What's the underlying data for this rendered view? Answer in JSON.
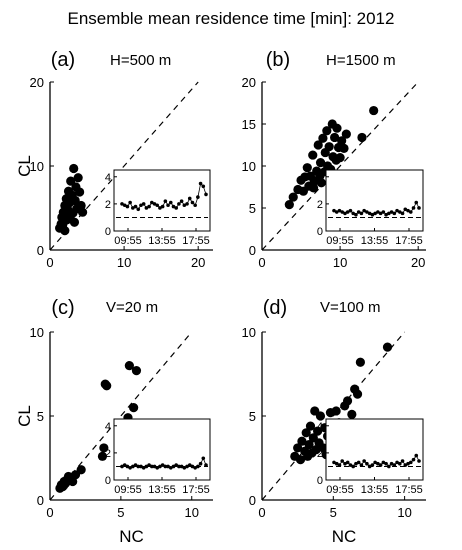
{
  "figure": {
    "title": "Ensemble mean residence time [min]: 2012"
  },
  "chart_data": [
    {
      "type": "scatter",
      "panel_label": "(a)",
      "annotation": "H=500 m",
      "xlabel": "",
      "ylabel": "CL",
      "xlim": [
        0,
        22
      ],
      "ylim": [
        0,
        20
      ],
      "xticks": [
        "0",
        "10",
        "20"
      ],
      "yticks": [
        "0",
        "10",
        "20"
      ],
      "reference_line": "1:1 dashed",
      "points": [
        [
          1.3,
          2.6
        ],
        [
          1.5,
          3.1
        ],
        [
          1.6,
          3.9
        ],
        [
          1.7,
          2.9
        ],
        [
          1.8,
          4.5
        ],
        [
          1.9,
          3.4
        ],
        [
          2.0,
          5.3
        ],
        [
          2.1,
          4.1
        ],
        [
          2.2,
          6.1
        ],
        [
          2.3,
          3.6
        ],
        [
          2.4,
          4.8
        ],
        [
          2.5,
          7.0
        ],
        [
          2.6,
          5.6
        ],
        [
          2.7,
          3.9
        ],
        [
          2.8,
          8.2
        ],
        [
          3.0,
          6.5
        ],
        [
          3.1,
          4.4
        ],
        [
          3.2,
          9.7
        ],
        [
          3.4,
          5.9
        ],
        [
          3.5,
          7.5
        ],
        [
          3.6,
          4.9
        ],
        [
          3.8,
          8.6
        ],
        [
          4.0,
          6.9
        ],
        [
          4.2,
          5.3
        ],
        [
          4.4,
          4.5
        ],
        [
          2.0,
          2.3
        ],
        [
          3.3,
          3.3
        ]
      ],
      "inset": {
        "xticks": [
          "09:55",
          "13:55",
          "17:55"
        ],
        "yticks": [
          "0",
          "2",
          "4"
        ],
        "ylim": [
          0,
          4.5
        ],
        "reference_level": 1,
        "series": [
          2.0,
          1.9,
          1.8,
          2.1,
          1.7,
          1.8,
          1.6,
          1.9,
          2.0,
          1.7,
          1.8,
          2.1,
          2.0,
          1.9,
          1.7,
          1.8,
          2.2,
          1.9,
          2.1,
          1.8,
          1.7,
          2.0,
          2.2,
          1.9,
          2.0,
          2.4,
          2.1,
          1.9,
          2.5,
          3.5,
          3.3,
          2.7
        ]
      }
    },
    {
      "type": "scatter",
      "panel_label": "(b)",
      "annotation": "H=1500 m",
      "xlabel": "",
      "ylabel": "",
      "xlim": [
        0,
        21
      ],
      "ylim": [
        0,
        20
      ],
      "xticks": [
        "0",
        "10",
        "20"
      ],
      "yticks": [
        "0",
        "5",
        "10",
        "15",
        "20"
      ],
      "reference_line": "1:1 dashed",
      "points": [
        [
          3.5,
          5.4
        ],
        [
          4.0,
          6.3
        ],
        [
          4.6,
          7.2
        ],
        [
          5.0,
          8.3
        ],
        [
          5.3,
          7.0
        ],
        [
          5.5,
          8.7
        ],
        [
          5.8,
          9.8
        ],
        [
          6.0,
          7.6
        ],
        [
          6.2,
          8.8
        ],
        [
          6.5,
          11.3
        ],
        [
          6.7,
          8.2
        ],
        [
          7.0,
          9.4
        ],
        [
          7.2,
          12.5
        ],
        [
          7.4,
          8.8
        ],
        [
          7.5,
          10.4
        ],
        [
          7.8,
          13.3
        ],
        [
          8.0,
          9.3
        ],
        [
          8.1,
          11.6
        ],
        [
          8.3,
          14.2
        ],
        [
          8.4,
          10.0
        ],
        [
          8.6,
          12.3
        ],
        [
          8.8,
          9.6
        ],
        [
          9.0,
          15.0
        ],
        [
          9.1,
          11.1
        ],
        [
          9.3,
          13.4
        ],
        [
          9.5,
          10.7
        ],
        [
          9.6,
          14.5
        ],
        [
          9.8,
          12.2
        ],
        [
          10.0,
          11.0
        ],
        [
          10.2,
          13.0
        ],
        [
          10.5,
          12.1
        ],
        [
          10.8,
          13.8
        ],
        [
          12.8,
          13.4
        ],
        [
          14.3,
          16.6
        ],
        [
          6.6,
          7.4
        ],
        [
          7.6,
          8.0
        ],
        [
          8.7,
          8.9
        ]
      ],
      "inset": {
        "xticks": [
          "09:55",
          "13:55",
          "17:55"
        ],
        "yticks": [
          "0",
          "2",
          "4"
        ],
        "ylim": [
          0,
          4.5
        ],
        "reference_level": 1,
        "series": [
          1.5,
          1.4,
          1.5,
          1.4,
          1.3,
          1.4,
          1.5,
          1.3,
          1.2,
          1.4,
          1.3,
          1.5,
          1.4,
          1.3,
          1.2,
          1.3,
          1.4,
          1.3,
          1.4,
          1.2,
          1.3,
          1.4,
          1.3,
          1.5,
          1.4,
          1.3,
          1.6,
          1.5,
          1.4,
          1.7,
          2.1,
          1.7
        ]
      }
    },
    {
      "type": "scatter",
      "panel_label": "(c)",
      "annotation": "V=20 m",
      "xlabel": "NC",
      "ylabel": "CL",
      "xlim": [
        0,
        11.5
      ],
      "ylim": [
        0,
        10
      ],
      "xticks": [
        "0",
        "5",
        "10"
      ],
      "yticks": [
        "0",
        "5",
        "10"
      ],
      "reference_line": "1:1 dashed",
      "points": [
        [
          0.7,
          0.7
        ],
        [
          0.8,
          0.9
        ],
        [
          0.9,
          0.8
        ],
        [
          1.0,
          1.1
        ],
        [
          1.0,
          0.9
        ],
        [
          1.1,
          1.0
        ],
        [
          1.2,
          1.2
        ],
        [
          1.3,
          1.4
        ],
        [
          1.4,
          1.2
        ],
        [
          1.5,
          1.3
        ],
        [
          1.6,
          1.1
        ],
        [
          1.8,
          1.5
        ],
        [
          2.2,
          1.8
        ],
        [
          3.7,
          2.6
        ],
        [
          3.8,
          3.1
        ],
        [
          3.9,
          6.9
        ],
        [
          4.0,
          6.8
        ],
        [
          5.5,
          4.9
        ],
        [
          5.6,
          8.0
        ],
        [
          5.9,
          5.5
        ],
        [
          6.1,
          7.7
        ]
      ],
      "inset": {
        "xticks": [
          "09:55",
          "13:55",
          "17:55"
        ],
        "yticks": [
          "0",
          "2",
          "4"
        ],
        "ylim": [
          0,
          4.5
        ],
        "reference_level": 1,
        "series": [
          1.0,
          1.1,
          1.0,
          0.9,
          1.0,
          1.1,
          1.0,
          1.0,
          0.9,
          1.0,
          1.1,
          1.0,
          1.0,
          0.9,
          1.0,
          1.1,
          1.0,
          1.0,
          0.9,
          1.0,
          1.1,
          1.0,
          1.0,
          0.9,
          1.0,
          1.1,
          1.0,
          0.9,
          1.0,
          1.2,
          1.6,
          1.1
        ]
      }
    },
    {
      "type": "scatter",
      "panel_label": "(d)",
      "annotation": "V=100 m",
      "xlabel": "NC",
      "ylabel": "",
      "xlim": [
        0,
        11.5
      ],
      "ylim": [
        0,
        10
      ],
      "xticks": [
        "0",
        "5",
        "10"
      ],
      "yticks": [
        "0",
        "5",
        "10"
      ],
      "reference_line": "1:1 dashed",
      "points": [
        [
          2.3,
          2.6
        ],
        [
          2.5,
          3.1
        ],
        [
          2.7,
          2.4
        ],
        [
          2.8,
          3.5
        ],
        [
          3.0,
          2.9
        ],
        [
          3.1,
          4.0
        ],
        [
          3.2,
          2.6
        ],
        [
          3.3,
          3.3
        ],
        [
          3.4,
          4.4
        ],
        [
          3.5,
          2.8
        ],
        [
          3.6,
          3.7
        ],
        [
          3.7,
          5.3
        ],
        [
          3.8,
          3.0
        ],
        [
          3.9,
          4.1
        ],
        [
          4.0,
          3.4
        ],
        [
          4.1,
          5.0
        ],
        [
          4.3,
          3.1
        ],
        [
          4.4,
          4.3
        ],
        [
          4.5,
          2.7
        ],
        [
          4.6,
          3.8
        ],
        [
          4.8,
          5.2
        ],
        [
          5.0,
          4.0
        ],
        [
          5.2,
          5.3
        ],
        [
          5.4,
          4.6
        ],
        [
          5.6,
          3.2
        ],
        [
          5.8,
          5.6
        ],
        [
          6.0,
          5.9
        ],
        [
          6.3,
          5.1
        ],
        [
          6.5,
          6.6
        ],
        [
          6.7,
          6.3
        ],
        [
          6.9,
          8.2
        ],
        [
          8.8,
          9.1
        ]
      ],
      "inset": {
        "xticks": [
          "09:55",
          "13:55",
          "17:55"
        ],
        "yticks": [
          "0",
          "2",
          "4"
        ],
        "ylim": [
          0,
          4.5
        ],
        "reference_level": 1,
        "series": [
          1.3,
          1.2,
          1.1,
          1.4,
          1.2,
          1.3,
          1.1,
          1.0,
          1.2,
          1.3,
          1.1,
          1.4,
          1.2,
          1.0,
          1.1,
          1.3,
          1.2,
          1.1,
          1.3,
          1.2,
          1.0,
          1.2,
          1.1,
          1.3,
          1.2,
          1.4,
          1.1,
          1.2,
          1.3,
          1.5,
          1.8,
          1.4
        ]
      }
    }
  ]
}
